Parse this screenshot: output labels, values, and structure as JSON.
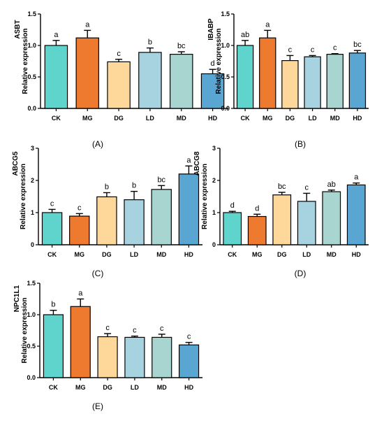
{
  "colors": [
    "#5fd4cc",
    "#ee7a30",
    "#fdd89a",
    "#a7d3e0",
    "#a9d5d0",
    "#5aa6d2"
  ],
  "chart_data": [
    {
      "type": "bar",
      "panel": "(A)",
      "ylabel_top": "ASBT",
      "ylabel": "Relative expression",
      "categories": [
        "CK",
        "MG",
        "DG",
        "LD",
        "MD",
        "HD"
      ],
      "values": [
        1.0,
        1.12,
        0.74,
        0.89,
        0.86,
        0.55
      ],
      "errors": [
        0.08,
        0.12,
        0.04,
        0.07,
        0.04,
        0.07
      ],
      "significance": [
        "a",
        "a",
        "c",
        "b",
        "bc",
        "d"
      ],
      "ylim": [
        0,
        1.5
      ],
      "yticks": [
        "0.0",
        "0.5",
        "1.0",
        "1.5"
      ]
    },
    {
      "type": "bar",
      "panel": "(B)",
      "ylabel_top": "IBABP",
      "ylabel": "Relative expression",
      "categories": [
        "CK",
        "MG",
        "DG",
        "LD",
        "MD",
        "HD"
      ],
      "values": [
        1.0,
        1.12,
        0.76,
        0.82,
        0.86,
        0.88
      ],
      "errors": [
        0.08,
        0.12,
        0.08,
        0.02,
        0.01,
        0.04
      ],
      "significance": [
        "ab",
        "a",
        "c",
        "c",
        "c",
        "bc"
      ],
      "ylim": [
        0,
        1.5
      ],
      "yticks": [
        "0.0",
        "0.5",
        "1.0",
        "1.5"
      ]
    },
    {
      "type": "bar",
      "panel": "(C)",
      "ylabel_top": "ABCG5",
      "ylabel": "Relative expression",
      "categories": [
        "CK",
        "MG",
        "DG",
        "LD",
        "MD",
        "HD"
      ],
      "values": [
        1.0,
        0.89,
        1.49,
        1.4,
        1.72,
        2.2
      ],
      "errors": [
        0.1,
        0.08,
        0.13,
        0.26,
        0.12,
        0.25
      ],
      "significance": [
        "c",
        "c",
        "b",
        "b",
        "bc",
        "a"
      ],
      "ylim": [
        0,
        3
      ],
      "yticks": [
        "0",
        "1",
        "2",
        "3"
      ]
    },
    {
      "type": "bar",
      "panel": "(D)",
      "ylabel_top": "ABCG8",
      "ylabel": "Relative expression",
      "categories": [
        "CK",
        "MG",
        "DG",
        "LD",
        "MD",
        "HD"
      ],
      "values": [
        1.0,
        0.88,
        1.55,
        1.35,
        1.65,
        1.86
      ],
      "errors": [
        0.04,
        0.07,
        0.08,
        0.25,
        0.05,
        0.06
      ],
      "significance": [
        "d",
        "d",
        "bc",
        "c",
        "ab",
        "a"
      ],
      "ylim": [
        0,
        3
      ],
      "yticks": [
        "0",
        "1",
        "2",
        "3"
      ]
    },
    {
      "type": "bar",
      "panel": "(E)",
      "ylabel_top": "NPC1L1",
      "ylabel": "Relative expression",
      "categories": [
        "CK",
        "MG",
        "DG",
        "LD",
        "MD",
        "HD"
      ],
      "values": [
        1.0,
        1.13,
        0.65,
        0.64,
        0.64,
        0.52
      ],
      "errors": [
        0.07,
        0.12,
        0.05,
        0.02,
        0.05,
        0.04
      ],
      "significance": [
        "b",
        "a",
        "c",
        "c",
        "c",
        "c"
      ],
      "ylim": [
        0,
        1.5
      ],
      "yticks": [
        "0.0",
        "0.5",
        "1.0",
        "1.5"
      ]
    }
  ]
}
